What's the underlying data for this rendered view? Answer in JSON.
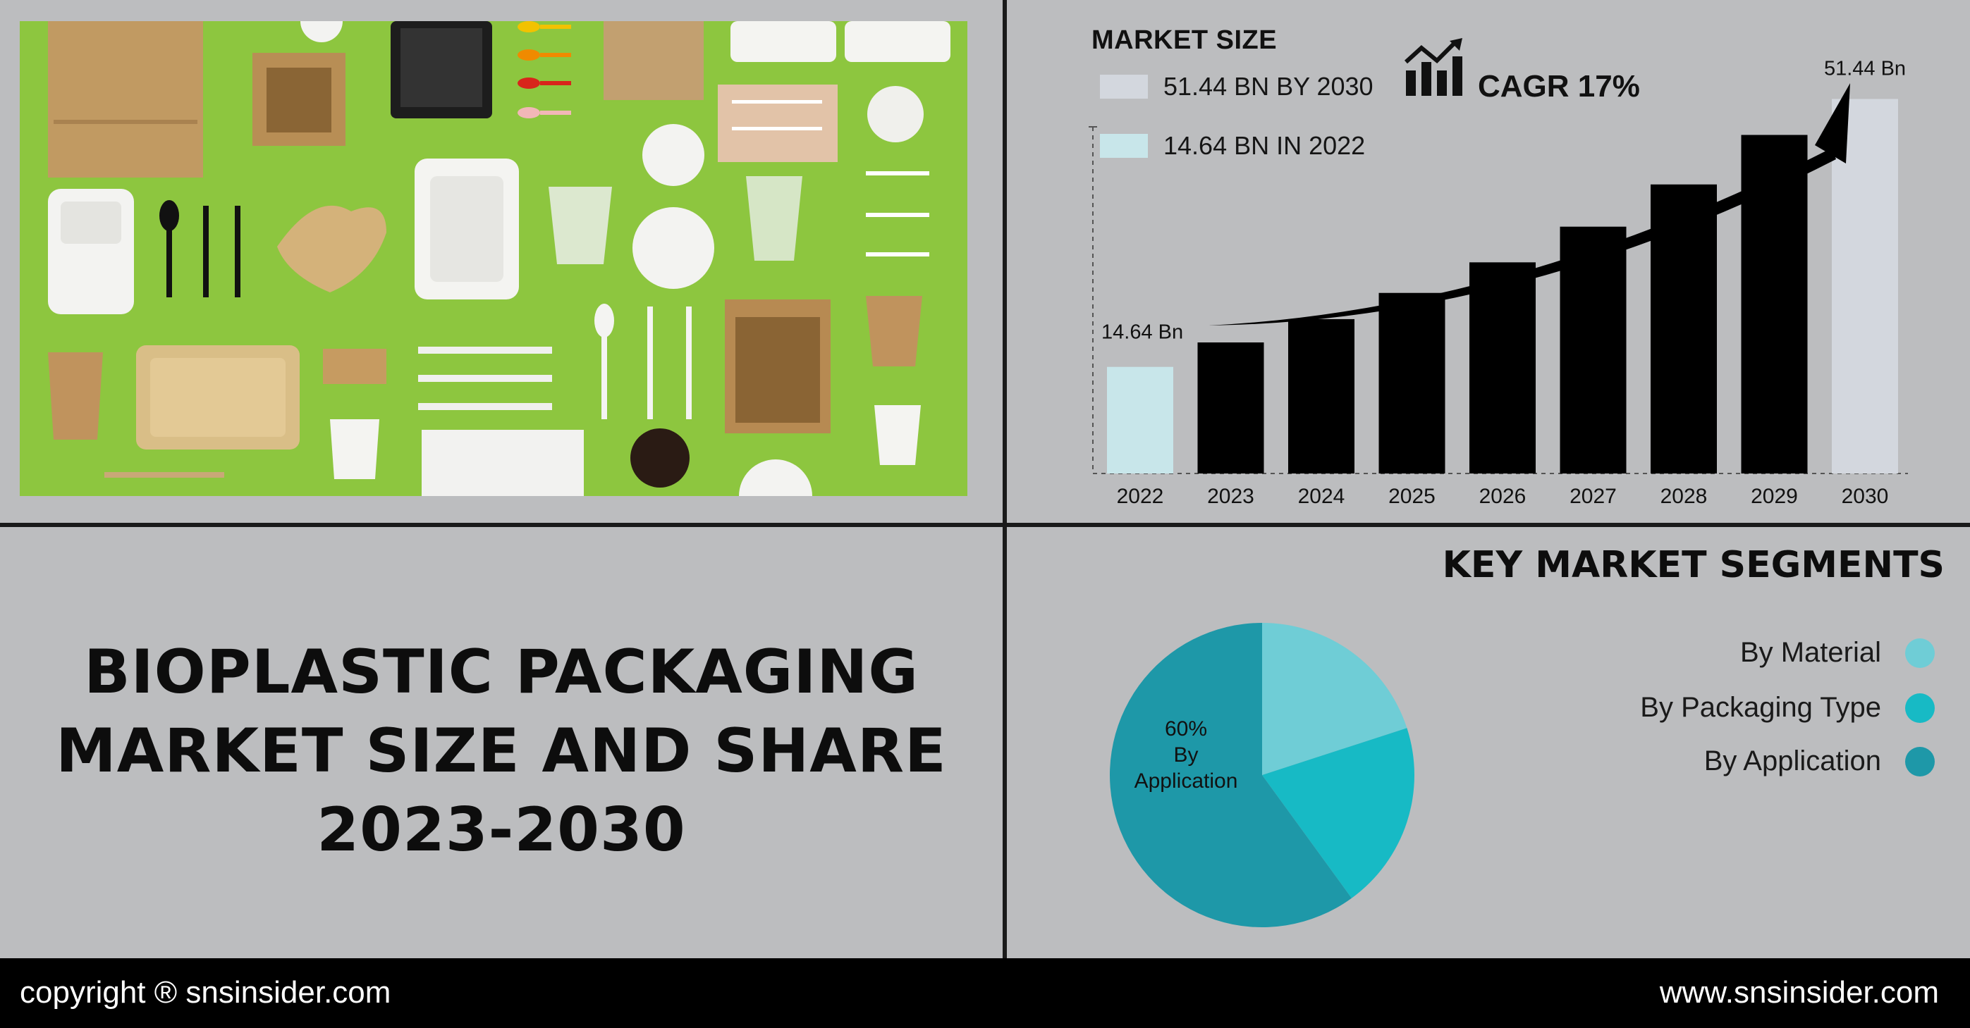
{
  "chart_data": [
    {
      "type": "bar",
      "title": "MARKET SIZE",
      "categories": [
        "2022",
        "2023",
        "2024",
        "2025",
        "2026",
        "2027",
        "2028",
        "2029",
        "2030"
      ],
      "values": [
        14.64,
        18.0,
        21.2,
        24.8,
        29.0,
        33.9,
        39.7,
        46.5,
        51.44
      ],
      "data_labels": {
        "first": "14.64 Bn",
        "last": "51.44 Bn"
      },
      "legend": [
        {
          "label": "51.44 BN BY 2030",
          "color": "#d3d7de"
        },
        {
          "label": "14.64 BN IN 2022",
          "color": "#c8e6ea"
        }
      ],
      "cagr": "CAGR 17%",
      "colors": {
        "first": "#c8e6ea",
        "middle": "#000000",
        "last": "#d3d7de"
      },
      "ylim": [
        0,
        60
      ]
    },
    {
      "type": "pie",
      "title": "KEY MARKET SEGMENTS",
      "slices": [
        {
          "name": "By Material",
          "value": 20,
          "color": "#6fcdd6"
        },
        {
          "name": "By Packaging Type",
          "value": 20,
          "color": "#17bac5"
        },
        {
          "name": "By Application",
          "value": 60,
          "color": "#1e98a8"
        }
      ],
      "annotation": {
        "value": "60%",
        "line2": "By",
        "line3": "Application"
      }
    }
  ],
  "title_lines": [
    "BIOPLASTIC PACKAGING",
    "MARKET SIZE AND SHARE",
    "2023-2030"
  ],
  "footer": {
    "copyright": "copyright ® snsinsider.com",
    "website": "www.snsinsider.com"
  },
  "icons": {
    "growth": "bar-growth-icon"
  }
}
